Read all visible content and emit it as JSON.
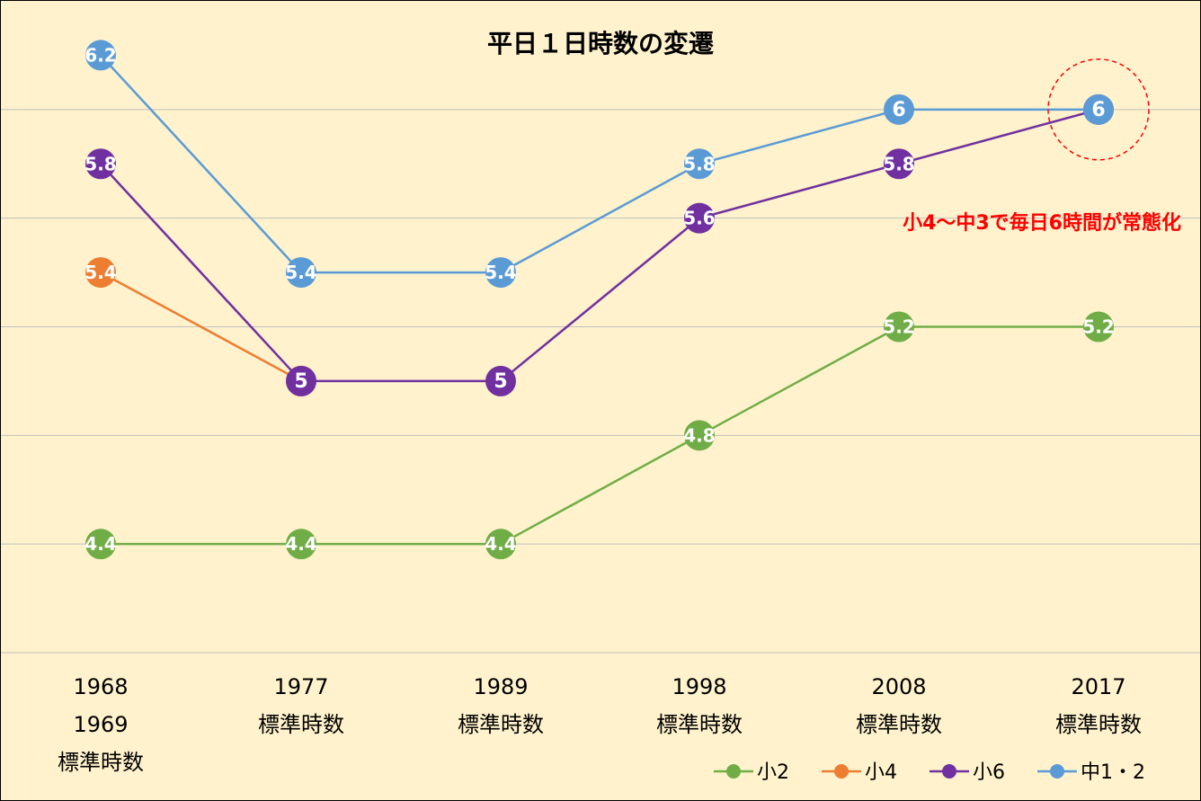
{
  "chart_data": {
    "type": "line",
    "title": "平日１日時数の変遷",
    "categories": [
      [
        "1968",
        "1969",
        "標準時数"
      ],
      [
        "1977",
        "標準時数"
      ],
      [
        "1989",
        "標準時数"
      ],
      [
        "1998",
        "標準時数"
      ],
      [
        "2008",
        "標準時数"
      ],
      [
        "2017",
        "標準時数"
      ]
    ],
    "ylim": [
      4.0,
      6.4
    ],
    "grid": true,
    "legend_position": "bottom-right",
    "series": [
      {
        "name": "小2",
        "color": "#70AD47",
        "values": [
          4.4,
          4.4,
          4.4,
          4.8,
          5.2,
          5.2
        ]
      },
      {
        "name": "小4",
        "color": "#ED7D31",
        "values": [
          5.4,
          5.0,
          null,
          null,
          null,
          null
        ]
      },
      {
        "name": "小6",
        "color": "#7030A0",
        "values": [
          5.8,
          5.0,
          5.0,
          5.6,
          5.8,
          6.0
        ]
      },
      {
        "name": "中1・2",
        "color": "#5B9BD5",
        "values": [
          6.2,
          5.4,
          5.4,
          5.8,
          6.0,
          6.0
        ]
      }
    ],
    "annotation": {
      "text": "小4～中3で毎日6時間が常態化",
      "color": "#FF0000",
      "target_category": 5,
      "target_value": 6.0
    }
  }
}
